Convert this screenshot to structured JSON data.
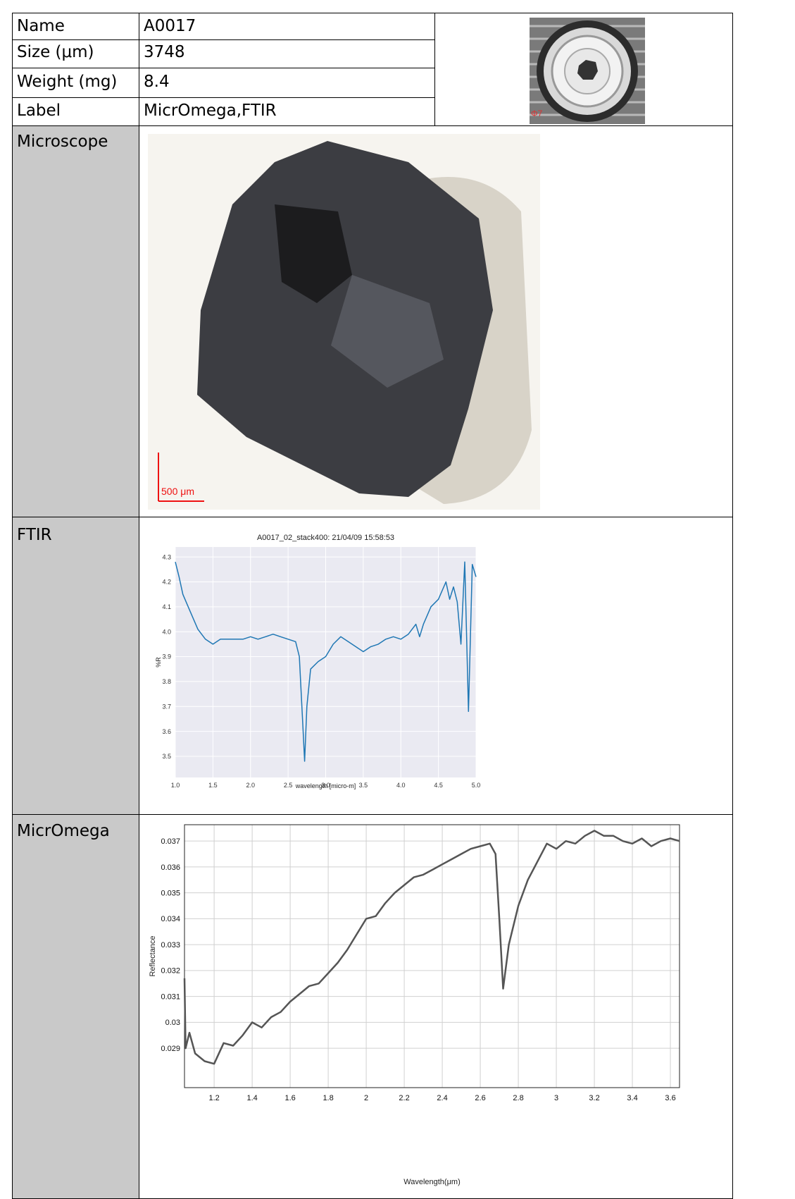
{
  "table": {
    "rows": [
      [
        "Name",
        "A0017"
      ],
      [
        "Size (μm)",
        "3748"
      ],
      [
        "Weight (mg)",
        "8.4"
      ],
      [
        "Label",
        "MicrOmega,FTIR"
      ]
    ],
    "sections": [
      "Microscope",
      "FTIR",
      "MicrOmega"
    ]
  },
  "holder_photo": {
    "label": "Φ7"
  },
  "microscope": {
    "scale_label": "500 μm"
  },
  "chart_data": [
    {
      "type": "line",
      "title": "A0017_02_stack400:  21/04/09 15:58:53",
      "x_label": "wavelength [micro-m]",
      "y_label": "%R",
      "background": "#eaeaf2",
      "grid": true,
      "x": [
        1.0,
        1.05,
        1.1,
        1.2,
        1.3,
        1.4,
        1.5,
        1.6,
        1.7,
        1.8,
        1.9,
        2.0,
        2.1,
        2.2,
        2.3,
        2.4,
        2.5,
        2.6,
        2.65,
        2.7,
        2.72,
        2.75,
        2.8,
        2.9,
        3.0,
        3.1,
        3.2,
        3.3,
        3.4,
        3.5,
        3.6,
        3.7,
        3.8,
        3.9,
        4.0,
        4.1,
        4.2,
        4.25,
        4.3,
        4.4,
        4.5,
        4.6,
        4.65,
        4.7,
        4.75,
        4.8,
        4.85,
        4.9,
        4.95,
        5.0
      ],
      "series": [
        {
          "color": "#1f77b4",
          "values": [
            4.28,
            4.22,
            4.15,
            4.08,
            4.01,
            3.97,
            3.95,
            3.97,
            3.97,
            3.97,
            3.97,
            3.98,
            3.97,
            3.98,
            3.99,
            3.98,
            3.97,
            3.96,
            3.9,
            3.6,
            3.48,
            3.7,
            3.85,
            3.88,
            3.9,
            3.95,
            3.98,
            3.96,
            3.94,
            3.92,
            3.94,
            3.95,
            3.97,
            3.98,
            3.97,
            3.99,
            4.03,
            3.98,
            4.03,
            4.1,
            4.13,
            4.2,
            4.13,
            4.18,
            4.12,
            3.95,
            4.28,
            3.68,
            4.27,
            4.22
          ]
        }
      ],
      "xlim": [
        1.0,
        5.0
      ],
      "ylim": [
        3.415,
        4.34
      ],
      "xticks": [
        {
          "value": 1,
          "label": "1.0"
        },
        1.5,
        {
          "value": 2,
          "label": "2.0"
        },
        2.5,
        {
          "value": 3,
          "label": "3.0"
        },
        3.5,
        {
          "value": 4,
          "label": "4.0"
        },
        4.5,
        {
          "value": 5,
          "label": "5.0"
        }
      ],
      "yticks": [
        3.5,
        3.6,
        3.7,
        3.8,
        3.9,
        {
          "value": 4,
          "label": "4.0"
        },
        4.1,
        4.2,
        4.3
      ]
    },
    {
      "type": "line",
      "x_label": "Wavelength(μm)",
      "y_label": "Reflectance",
      "background": "#ffffff",
      "grid": true,
      "x": [
        1.044,
        1.05,
        1.07,
        1.1,
        1.15,
        1.2,
        1.25,
        1.3,
        1.35,
        1.4,
        1.45,
        1.5,
        1.55,
        1.6,
        1.65,
        1.7,
        1.75,
        1.8,
        1.85,
        1.9,
        1.95,
        2.0,
        2.05,
        2.1,
        2.15,
        2.2,
        2.25,
        2.3,
        2.35,
        2.4,
        2.45,
        2.5,
        2.55,
        2.6,
        2.65,
        2.68,
        2.7,
        2.72,
        2.75,
        2.8,
        2.85,
        2.9,
        2.95,
        3.0,
        3.05,
        3.1,
        3.15,
        3.2,
        3.25,
        3.3,
        3.35,
        3.4,
        3.45,
        3.5,
        3.55,
        3.6,
        3.648
      ],
      "series": [
        {
          "color": "#555555",
          "values": [
            0.0317,
            0.029,
            0.0296,
            0.0288,
            0.0285,
            0.0284,
            0.0292,
            0.0291,
            0.0295,
            0.03,
            0.0298,
            0.0302,
            0.0304,
            0.0308,
            0.0311,
            0.0314,
            0.0315,
            0.0319,
            0.0323,
            0.0328,
            0.0334,
            0.034,
            0.0341,
            0.0346,
            0.035,
            0.0353,
            0.0356,
            0.0357,
            0.0359,
            0.0361,
            0.0363,
            0.0365,
            0.0367,
            0.0368,
            0.0369,
            0.0365,
            0.034,
            0.0313,
            0.033,
            0.0345,
            0.0355,
            0.0362,
            0.0369,
            0.0367,
            0.037,
            0.0369,
            0.0372,
            0.0374,
            0.0372,
            0.0372,
            0.037,
            0.0369,
            0.0371,
            0.0368,
            0.037,
            0.0371,
            0.037
          ]
        }
      ],
      "xlim": [
        1.044,
        3.648
      ],
      "ylim": [
        0.02748,
        0.03763
      ],
      "xticks": [
        1.2,
        1.4,
        1.6,
        1.8,
        2,
        2.2,
        2.4,
        2.6,
        2.8,
        3,
        3.2,
        3.4,
        3.6
      ],
      "yticks": [
        0.029,
        0.03,
        0.031,
        0.032,
        0.033,
        0.034,
        0.035,
        0.036,
        0.037
      ]
    }
  ]
}
